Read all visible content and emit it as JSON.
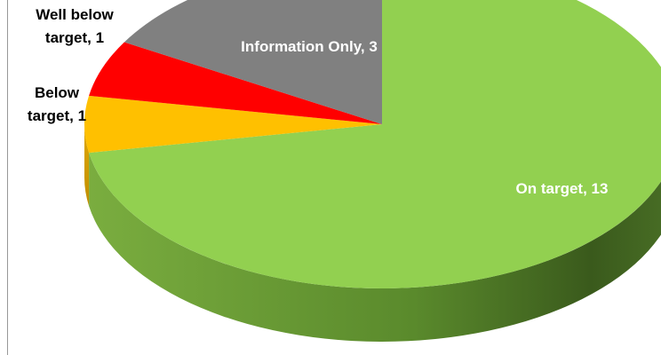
{
  "chart_data": {
    "type": "pie",
    "categories": [
      "On target",
      "Below target",
      "Well below target",
      "Information Only"
    ],
    "values": [
      13,
      1,
      1,
      3
    ],
    "value_labels": [
      "On target, 13",
      "Below target, 1",
      "Well below target, 1",
      "Information Only, 3"
    ],
    "colors": [
      "#92d050",
      "#ffc000",
      "#ff0000",
      "#808080"
    ]
  }
}
